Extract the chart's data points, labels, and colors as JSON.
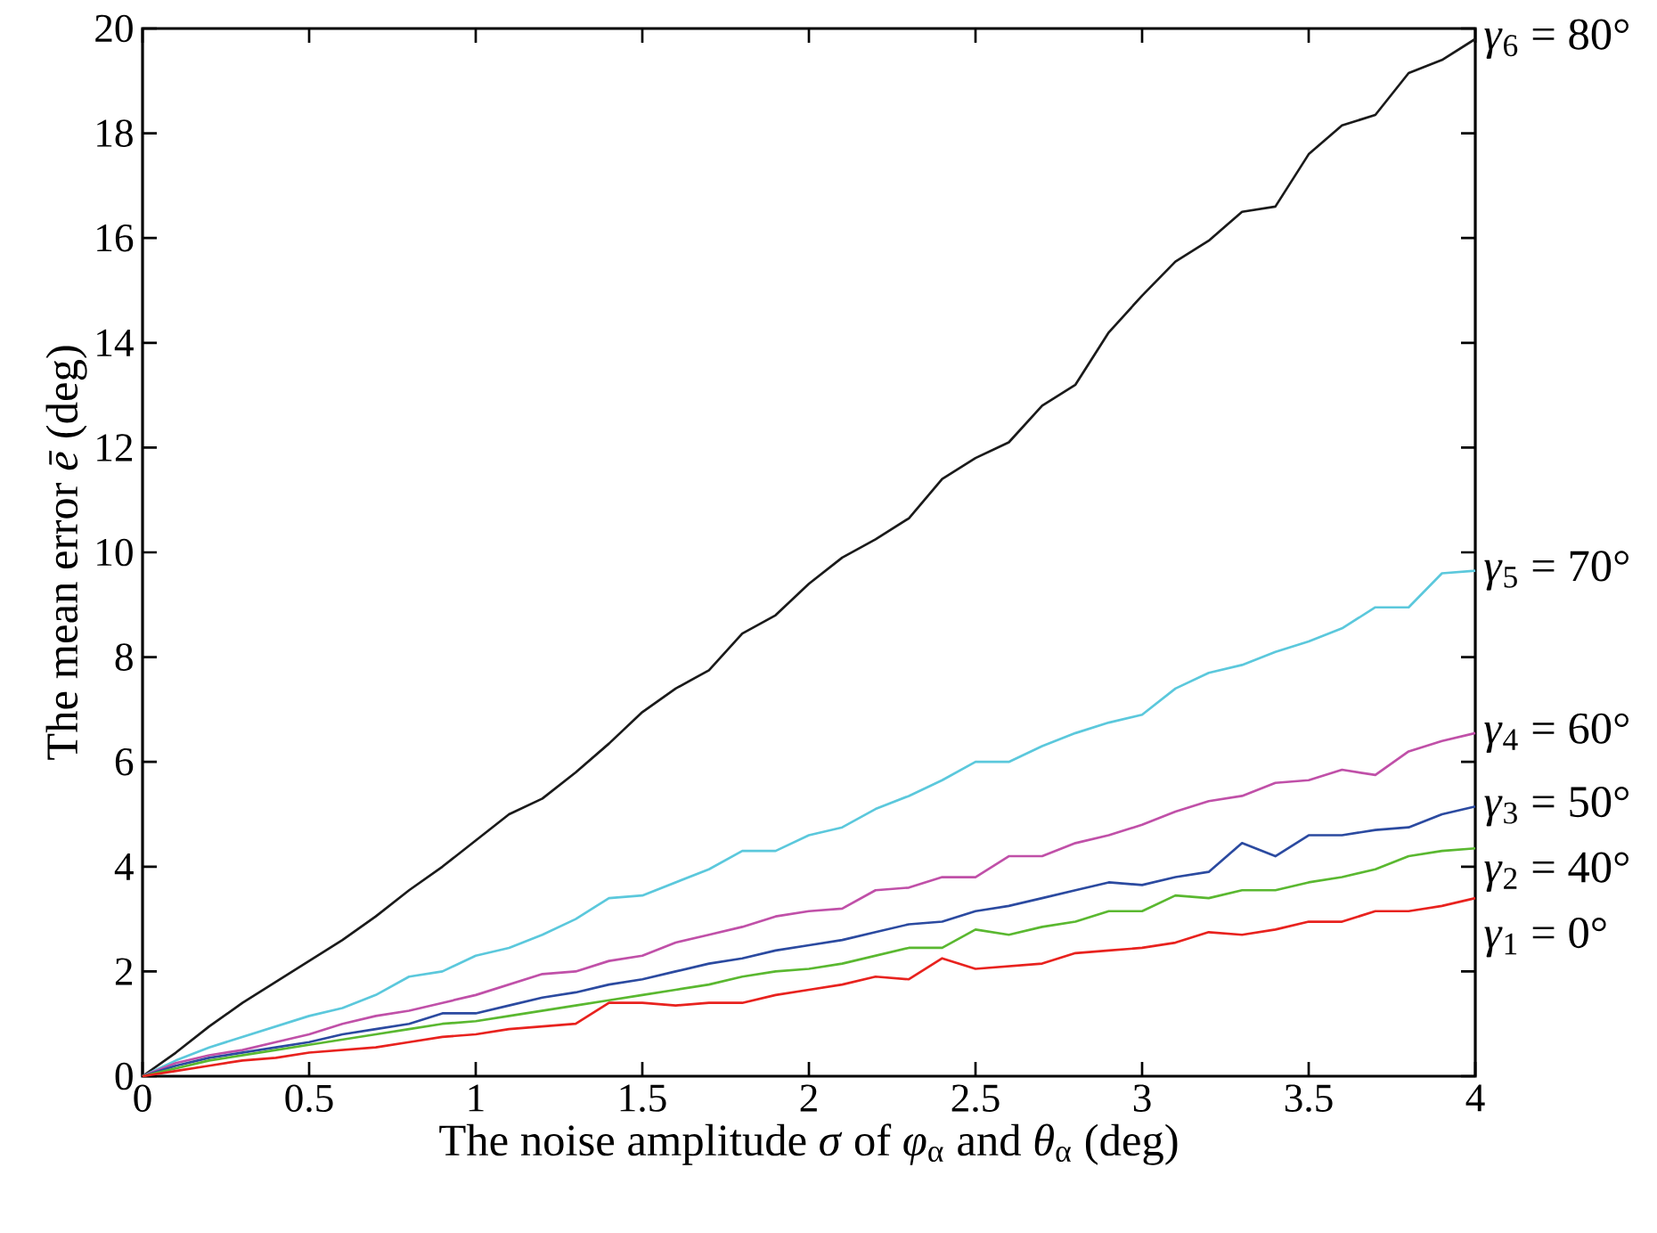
{
  "chart_data": {
    "type": "line",
    "xlabel": "The noise amplitude *σ* of *φ*$_{α}$ and *θ*$_{α}$ (deg)",
    "ylabel": "The mean error *ē* (deg)",
    "xlim": [
      0,
      4
    ],
    "ylim": [
      0,
      20
    ],
    "xticks": [
      0,
      0.5,
      1,
      1.5,
      2,
      2.5,
      3,
      3.5,
      4
    ],
    "yticks": [
      0,
      2,
      4,
      6,
      8,
      10,
      12,
      14,
      16,
      18,
      20
    ],
    "grid": false,
    "legend": false,
    "marker": "none",
    "line_style": "solid",
    "x": [
      0,
      0.1,
      0.2,
      0.3,
      0.4,
      0.5,
      0.6,
      0.7,
      0.8,
      0.9,
      1,
      1.1,
      1.2,
      1.3,
      1.4,
      1.5,
      1.6,
      1.7,
      1.8,
      1.9,
      2,
      2.1,
      2.2,
      2.3,
      2.4,
      2.5,
      2.6,
      2.7,
      2.8,
      2.9,
      3,
      3.1,
      3.2,
      3.3,
      3.4,
      3.5,
      3.6,
      3.7,
      3.8,
      3.9,
      4
    ],
    "series": [
      {
        "name": "*γ*$_{6}$ = 80°",
        "color": "#1a1a1a",
        "values": [
          0,
          0.45,
          0.95,
          1.4,
          1.8,
          2.2,
          2.6,
          3.05,
          3.55,
          4.0,
          4.5,
          5.0,
          5.3,
          5.8,
          6.35,
          6.95,
          7.4,
          7.75,
          8.45,
          8.8,
          9.4,
          9.9,
          10.25,
          10.65,
          11.4,
          11.8,
          12.1,
          12.8,
          13.2,
          14.2,
          14.9,
          15.55,
          15.95,
          16.5,
          16.6,
          17.6,
          18.15,
          18.35,
          19.15,
          19.4,
          19.8
        ]
      },
      {
        "name": "*γ*$_{5}$ = 70°",
        "color": "#5bc8dc",
        "values": [
          0,
          0.3,
          0.55,
          0.75,
          0.95,
          1.15,
          1.3,
          1.55,
          1.9,
          2.0,
          2.3,
          2.45,
          2.7,
          3.0,
          3.4,
          3.45,
          3.7,
          3.95,
          4.3,
          4.3,
          4.6,
          4.75,
          5.1,
          5.35,
          5.65,
          6.0,
          6.0,
          6.3,
          6.55,
          6.75,
          6.9,
          7.4,
          7.7,
          7.85,
          8.1,
          8.3,
          8.55,
          8.95,
          8.95,
          9.6,
          9.65
        ]
      },
      {
        "name": "*γ*$_{4}$ = 60°",
        "color": "#c050a8",
        "values": [
          0,
          0.25,
          0.4,
          0.5,
          0.65,
          0.8,
          1.0,
          1.15,
          1.25,
          1.4,
          1.55,
          1.75,
          1.95,
          2.0,
          2.2,
          2.3,
          2.55,
          2.7,
          2.85,
          3.05,
          3.15,
          3.2,
          3.55,
          3.6,
          3.8,
          3.8,
          4.2,
          4.2,
          4.45,
          4.6,
          4.8,
          5.05,
          5.25,
          5.35,
          5.6,
          5.65,
          5.85,
          5.75,
          6.2,
          6.4,
          6.55
        ]
      },
      {
        "name": "*γ*$_{3}$ = 50°",
        "color": "#2b4aa0",
        "values": [
          0,
          0.2,
          0.35,
          0.45,
          0.55,
          0.65,
          0.8,
          0.9,
          1.0,
          1.2,
          1.2,
          1.35,
          1.5,
          1.6,
          1.75,
          1.85,
          2.0,
          2.15,
          2.25,
          2.4,
          2.5,
          2.6,
          2.75,
          2.9,
          2.95,
          3.15,
          3.25,
          3.4,
          3.55,
          3.7,
          3.65,
          3.8,
          3.9,
          4.45,
          4.2,
          4.6,
          4.6,
          4.7,
          4.75,
          5.0,
          5.15
        ]
      },
      {
        "name": "*γ*$_{2}$ = 40°",
        "color": "#5ab830",
        "values": [
          0,
          0.15,
          0.3,
          0.4,
          0.5,
          0.6,
          0.7,
          0.8,
          0.9,
          1.0,
          1.05,
          1.15,
          1.25,
          1.35,
          1.45,
          1.55,
          1.65,
          1.75,
          1.9,
          2.0,
          2.05,
          2.15,
          2.3,
          2.45,
          2.45,
          2.8,
          2.7,
          2.85,
          2.95,
          3.15,
          3.15,
          3.45,
          3.4,
          3.55,
          3.55,
          3.7,
          3.8,
          3.95,
          4.2,
          4.3,
          4.35
        ]
      },
      {
        "name": "*γ*$_{1}$ = 0°",
        "color": "#e8221e",
        "values": [
          0,
          0.1,
          0.2,
          0.3,
          0.35,
          0.45,
          0.5,
          0.55,
          0.65,
          0.75,
          0.8,
          0.9,
          0.95,
          1.0,
          1.4,
          1.4,
          1.35,
          1.4,
          1.4,
          1.55,
          1.65,
          1.75,
          1.9,
          1.85,
          2.25,
          2.05,
          2.1,
          2.15,
          2.35,
          2.4,
          2.45,
          2.55,
          2.75,
          2.7,
          2.8,
          2.95,
          2.95,
          3.15,
          3.15,
          3.25,
          3.4
        ]
      }
    ]
  }
}
